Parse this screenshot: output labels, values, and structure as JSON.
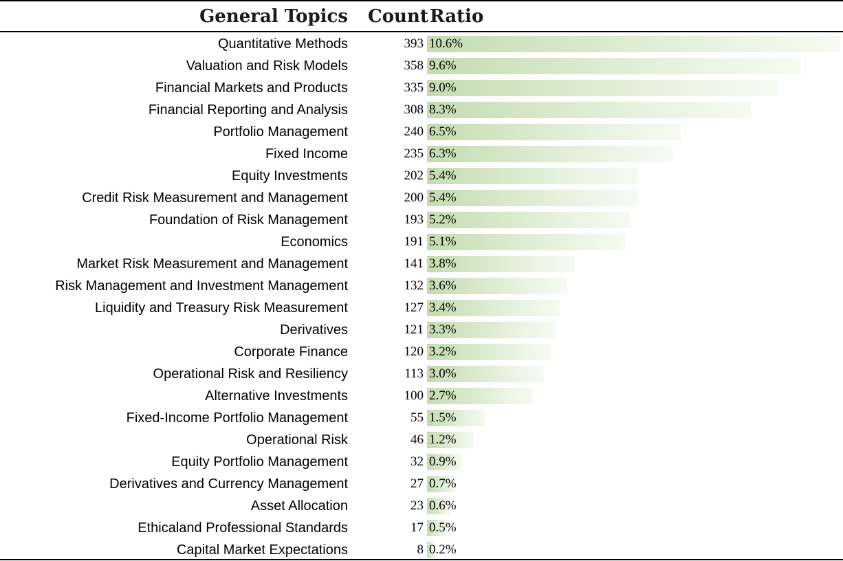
{
  "headers": {
    "topics": "General Topics",
    "count": "Count",
    "ratio": "Ratio"
  },
  "colors": {
    "bar_start": "#c4dcb0",
    "bar_end": "#f6faf2",
    "rule": "#000000"
  },
  "chart_data": {
    "type": "table",
    "columns": [
      "General Topics",
      "Count",
      "Ratio"
    ],
    "bar_column": "Ratio",
    "rows": [
      {
        "topic": "Quantitative Methods",
        "count": 393,
        "ratio": "10.6%",
        "ratio_value": 10.6
      },
      {
        "topic": "Valuation and Risk Models",
        "count": 358,
        "ratio": "9.6%",
        "ratio_value": 9.6
      },
      {
        "topic": "Financial Markets and Products",
        "count": 335,
        "ratio": "9.0%",
        "ratio_value": 9.0
      },
      {
        "topic": "Financial Reporting and Analysis",
        "count": 308,
        "ratio": "8.3%",
        "ratio_value": 8.3
      },
      {
        "topic": "Portfolio Management",
        "count": 240,
        "ratio": "6.5%",
        "ratio_value": 6.5
      },
      {
        "topic": "Fixed Income",
        "count": 235,
        "ratio": "6.3%",
        "ratio_value": 6.3
      },
      {
        "topic": "Equity Investments",
        "count": 202,
        "ratio": "5.4%",
        "ratio_value": 5.4
      },
      {
        "topic": "Credit Risk Measurement and Management",
        "count": 200,
        "ratio": "5.4%",
        "ratio_value": 5.4
      },
      {
        "topic": "Foundation of Risk Management",
        "count": 193,
        "ratio": "5.2%",
        "ratio_value": 5.2
      },
      {
        "topic": "Economics",
        "count": 191,
        "ratio": "5.1%",
        "ratio_value": 5.1
      },
      {
        "topic": "Market Risk Measurement and Management",
        "count": 141,
        "ratio": "3.8%",
        "ratio_value": 3.8
      },
      {
        "topic": "Risk Management and Investment Management",
        "count": 132,
        "ratio": "3.6%",
        "ratio_value": 3.6
      },
      {
        "topic": "Liquidity and Treasury Risk Measurement",
        "count": 127,
        "ratio": "3.4%",
        "ratio_value": 3.4
      },
      {
        "topic": "Derivatives",
        "count": 121,
        "ratio": "3.3%",
        "ratio_value": 3.3
      },
      {
        "topic": "Corporate Finance",
        "count": 120,
        "ratio": "3.2%",
        "ratio_value": 3.2
      },
      {
        "topic": "Operational Risk and Resiliency",
        "count": 113,
        "ratio": "3.0%",
        "ratio_value": 3.0
      },
      {
        "topic": "Alternative Investments",
        "count": 100,
        "ratio": "2.7%",
        "ratio_value": 2.7
      },
      {
        "topic": "Fixed-Income Portfolio Management",
        "count": 55,
        "ratio": "1.5%",
        "ratio_value": 1.5
      },
      {
        "topic": "Operational Risk",
        "count": 46,
        "ratio": "1.2%",
        "ratio_value": 1.2
      },
      {
        "topic": "Equity Portfolio Management",
        "count": 32,
        "ratio": "0.9%",
        "ratio_value": 0.9
      },
      {
        "topic": "Derivatives and Currency Management",
        "count": 27,
        "ratio": "0.7%",
        "ratio_value": 0.7
      },
      {
        "topic": "Asset Allocation",
        "count": 23,
        "ratio": "0.6%",
        "ratio_value": 0.6
      },
      {
        "topic": "Ethicaland Professional Standards",
        "count": 17,
        "ratio": "0.5%",
        "ratio_value": 0.5
      },
      {
        "topic": "Capital Market Expectations",
        "count": 8,
        "ratio": "0.2%",
        "ratio_value": 0.2
      }
    ]
  }
}
